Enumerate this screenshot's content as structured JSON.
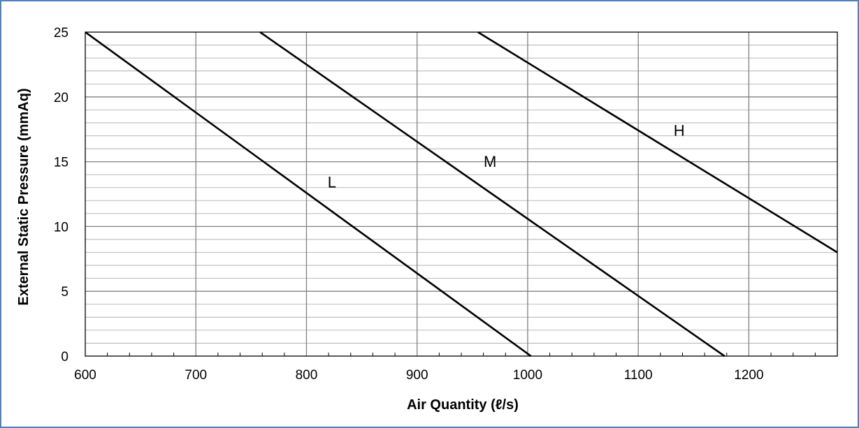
{
  "chart_data": {
    "type": "line",
    "title": "",
    "xlabel": "Air Quantity (ℓ/s)",
    "ylabel": "External Static Pressure (mmAq)",
    "xlim": [
      600,
      1280
    ],
    "ylim": [
      0,
      25
    ],
    "x_ticks": [
      600,
      700,
      800,
      900,
      1000,
      1100,
      1200
    ],
    "y_ticks": [
      0,
      5,
      10,
      15,
      20,
      25
    ],
    "x_gridlines": [
      700,
      800,
      900,
      1000,
      1100,
      1200
    ],
    "y_minor_step": 1,
    "y_major_step": 5,
    "x_minor_step": 20,
    "grid": true,
    "legend": "none",
    "series": [
      {
        "name": "L",
        "x": [
          600,
          1003
        ],
        "y": [
          25,
          0
        ],
        "label_at": [
          823,
          13
        ]
      },
      {
        "name": "M",
        "x": [
          758,
          1178
        ],
        "y": [
          25,
          0
        ],
        "label_at": [
          966,
          14.6
        ]
      },
      {
        "name": "H",
        "x": [
          955,
          1280
        ],
        "y": [
          25,
          8
        ],
        "label_at": [
          1137,
          17
        ]
      }
    ]
  }
}
